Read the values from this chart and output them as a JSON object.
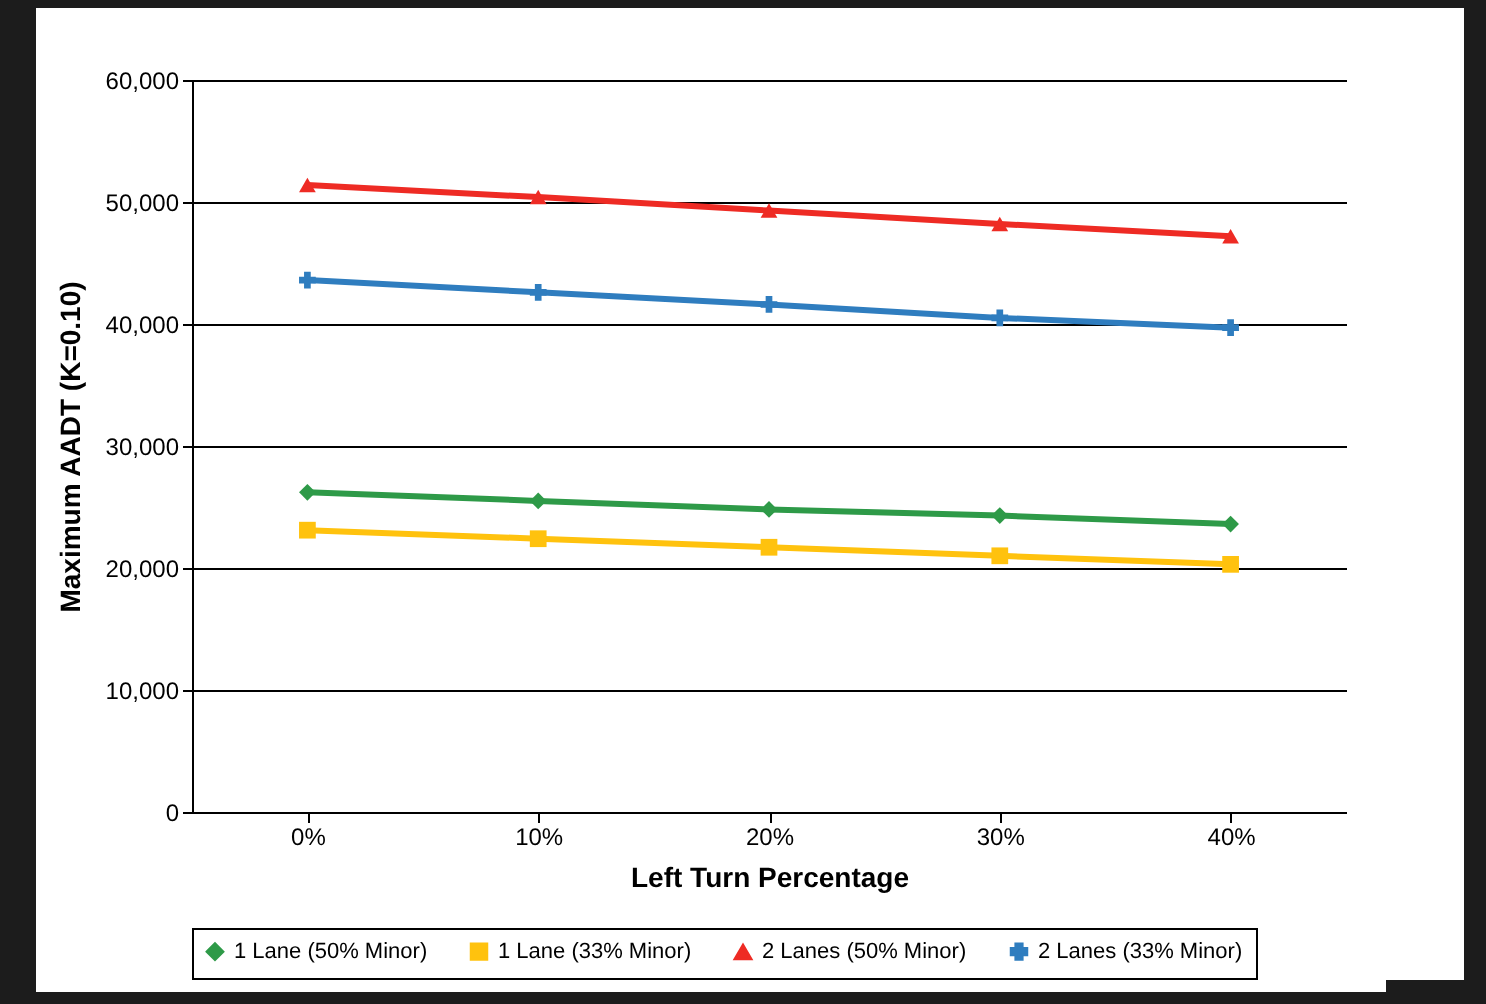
{
  "chart_data": {
    "type": "line",
    "xlabel": "Left Turn Percentage",
    "ylabel": "Maximum AADT (K=0.10)",
    "categories": [
      "0%",
      "10%",
      "20%",
      "30%",
      "40%"
    ],
    "series": [
      {
        "name": "1 Lane (50% Minor)",
        "color": "#2e9a48",
        "marker": "diamond",
        "values": [
          26200,
          25500,
          24800,
          24300,
          23600
        ]
      },
      {
        "name": "1 Lane (33% Minor)",
        "color": "#ffc20e",
        "marker": "square",
        "values": [
          23100,
          22400,
          21700,
          21000,
          20300
        ]
      },
      {
        "name": "2 Lanes (50% Minor)",
        "color": "#ee2b24",
        "marker": "triangle",
        "values": [
          51400,
          50400,
          49300,
          48200,
          47200
        ]
      },
      {
        "name": "2 Lanes (33% Minor)",
        "color": "#2f7dbf",
        "marker": "cross",
        "values": [
          43600,
          42600,
          41600,
          40500,
          39700
        ]
      }
    ],
    "ylim": [
      0,
      60000
    ],
    "yticks": [
      0,
      {
        "value": 10000,
        "label": "10,000"
      },
      {
        "value": 20000,
        "label": "20,000"
      },
      {
        "value": 30000,
        "label": "30,000"
      },
      {
        "value": 40000,
        "label": "40,000"
      },
      {
        "value": 50000,
        "label": "50,000"
      },
      {
        "value": 60000,
        "label": "60,000"
      }
    ],
    "grid": "y",
    "legend": "bottom",
    "line_style": "solid"
  }
}
